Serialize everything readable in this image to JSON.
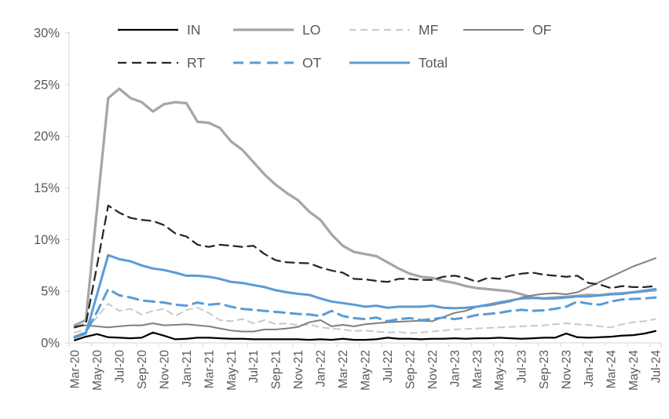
{
  "chart_data": {
    "type": "line",
    "title": "",
    "xlabel": "",
    "ylabel": "",
    "ylim": [
      0,
      30
    ],
    "y_tick_labels": [
      "0%",
      "5%",
      "10%",
      "15%",
      "20%",
      "25%",
      "30%"
    ],
    "grid": false,
    "legend_position": "top",
    "legend_rows": [
      [
        "IN",
        "LO",
        "MF",
        "OF"
      ],
      [
        "RT",
        "OT",
        "Total"
      ]
    ],
    "axis_color": "#d6d6d6",
    "text_color": "#595959",
    "x_tick_labels": [
      "Mar-20",
      "May-20",
      "Jul-20",
      "Sep-20",
      "Nov-20",
      "Jan-21",
      "Mar-21",
      "May-21",
      "Jul-21",
      "Sep-21",
      "Nov-21",
      "Jan-22",
      "Mar-22",
      "May-22",
      "Jul-22",
      "Sep-22",
      "Nov-22",
      "Jan-23",
      "Mar-23",
      "May-23",
      "Jul-23",
      "Sep-23",
      "Nov-23",
      "Jan-24",
      "Mar-24",
      "May-24",
      "Jul-24"
    ],
    "x": [
      "Mar-20",
      "Apr-20",
      "May-20",
      "Jun-20",
      "Jul-20",
      "Aug-20",
      "Sep-20",
      "Oct-20",
      "Nov-20",
      "Dec-20",
      "Jan-21",
      "Feb-21",
      "Mar-21",
      "Apr-21",
      "May-21",
      "Jun-21",
      "Jul-21",
      "Aug-21",
      "Sep-21",
      "Oct-21",
      "Nov-21",
      "Dec-21",
      "Jan-22",
      "Feb-22",
      "Mar-22",
      "Apr-22",
      "May-22",
      "Jun-22",
      "Jul-22",
      "Aug-22",
      "Sep-22",
      "Oct-22",
      "Nov-22",
      "Dec-22",
      "Jan-23",
      "Feb-23",
      "Mar-23",
      "Apr-23",
      "May-23",
      "Jun-23",
      "Jul-23",
      "Aug-23",
      "Sep-23",
      "Oct-23",
      "Nov-23",
      "Dec-23",
      "Jan-24",
      "Feb-24",
      "Mar-24",
      "Apr-24",
      "May-24",
      "Jun-24",
      "Jul-24"
    ],
    "series": [
      {
        "name": "IN",
        "color": "#000000",
        "dash": "",
        "width": 2.25,
        "values": [
          0.25,
          0.6,
          0.85,
          0.55,
          0.5,
          0.45,
          0.5,
          1.0,
          0.7,
          0.35,
          0.4,
          0.5,
          0.5,
          0.45,
          0.4,
          0.4,
          0.35,
          0.35,
          0.35,
          0.35,
          0.35,
          0.3,
          0.35,
          0.3,
          0.4,
          0.3,
          0.3,
          0.35,
          0.5,
          0.4,
          0.4,
          0.35,
          0.4,
          0.4,
          0.45,
          0.4,
          0.45,
          0.45,
          0.5,
          0.45,
          0.4,
          0.45,
          0.5,
          0.5,
          0.9,
          0.55,
          0.5,
          0.55,
          0.6,
          0.7,
          0.75,
          0.9,
          1.15
        ]
      },
      {
        "name": "LO",
        "color": "#a6a6a6",
        "dash": "",
        "width": 3.25,
        "values": [
          1.7,
          2.2,
          13.0,
          23.7,
          24.6,
          23.7,
          23.3,
          22.4,
          23.1,
          23.3,
          23.2,
          21.4,
          21.3,
          20.8,
          19.5,
          18.7,
          17.5,
          16.3,
          15.3,
          14.5,
          13.8,
          12.7,
          11.9,
          10.5,
          9.4,
          8.8,
          8.6,
          8.4,
          7.8,
          7.2,
          6.7,
          6.4,
          6.3,
          6.0,
          5.8,
          5.5,
          5.3,
          5.2,
          5.1,
          5.0,
          4.7,
          4.4,
          4.3,
          4.4,
          4.45,
          4.55,
          4.65,
          4.6,
          4.75,
          4.8,
          4.9,
          5.0,
          5.1
        ]
      },
      {
        "name": "MF",
        "color": "#c9c9c9",
        "dash": "8 6",
        "width": 2,
        "values": [
          1.0,
          1.3,
          2.5,
          3.8,
          3.1,
          3.3,
          2.75,
          3.1,
          3.3,
          2.6,
          3.2,
          3.4,
          2.9,
          2.2,
          2.1,
          2.3,
          1.9,
          2.2,
          1.8,
          1.9,
          1.7,
          1.8,
          1.5,
          1.4,
          1.3,
          1.15,
          1.2,
          1.1,
          1.0,
          1.05,
          0.95,
          1.0,
          1.1,
          1.2,
          1.3,
          1.35,
          1.4,
          1.45,
          1.5,
          1.55,
          1.6,
          1.65,
          1.7,
          1.8,
          1.9,
          1.8,
          1.75,
          1.6,
          1.5,
          1.8,
          2.0,
          2.1,
          2.3
        ]
      },
      {
        "name": "OF",
        "color": "#7f7f7f",
        "dash": "",
        "width": 2,
        "values": [
          1.6,
          1.7,
          1.6,
          1.5,
          1.6,
          1.7,
          1.7,
          1.9,
          1.7,
          1.75,
          1.8,
          1.7,
          1.6,
          1.4,
          1.2,
          1.1,
          1.1,
          1.3,
          1.3,
          1.4,
          1.55,
          2.0,
          2.2,
          1.6,
          1.75,
          1.6,
          1.8,
          1.9,
          2.0,
          2.05,
          2.1,
          2.15,
          2.1,
          2.5,
          2.9,
          3.1,
          3.5,
          3.6,
          3.8,
          4.0,
          4.4,
          4.6,
          4.75,
          4.8,
          4.7,
          4.9,
          5.4,
          5.9,
          6.4,
          6.9,
          7.4,
          7.8,
          8.2
        ]
      },
      {
        "name": "RT",
        "color": "#262626",
        "dash": "11 7",
        "width": 2.25,
        "values": [
          1.5,
          1.8,
          7.5,
          13.3,
          12.6,
          12.1,
          11.9,
          11.8,
          11.4,
          10.6,
          10.3,
          9.5,
          9.3,
          9.5,
          9.4,
          9.3,
          9.4,
          8.6,
          8.0,
          7.8,
          7.75,
          7.7,
          7.3,
          7.0,
          6.8,
          6.2,
          6.15,
          6.0,
          5.9,
          6.2,
          6.2,
          6.1,
          6.1,
          6.4,
          6.5,
          6.3,
          5.9,
          6.3,
          6.2,
          6.5,
          6.7,
          6.8,
          6.6,
          6.5,
          6.4,
          6.5,
          5.8,
          5.65,
          5.3,
          5.5,
          5.4,
          5.4,
          5.5
        ]
      },
      {
        "name": "OT",
        "color": "#5b9bd5",
        "dash": "13 8",
        "width": 3,
        "values": [
          0.6,
          1.0,
          3.0,
          5.2,
          4.6,
          4.4,
          4.1,
          4.0,
          3.9,
          3.7,
          3.6,
          3.9,
          3.7,
          3.8,
          3.5,
          3.3,
          3.2,
          3.1,
          3.0,
          2.9,
          2.8,
          2.75,
          2.6,
          3.1,
          2.6,
          2.4,
          2.3,
          2.45,
          2.1,
          2.3,
          2.4,
          2.2,
          2.3,
          2.45,
          2.3,
          2.45,
          2.7,
          2.8,
          2.9,
          3.1,
          3.2,
          3.1,
          3.15,
          3.3,
          3.5,
          4.0,
          3.8,
          3.7,
          4.0,
          4.2,
          4.25,
          4.3,
          4.4
        ]
      },
      {
        "name": "Total",
        "color": "#5b9bd5",
        "dash": "",
        "width": 3,
        "values": [
          0.5,
          0.9,
          4.7,
          8.5,
          8.1,
          7.9,
          7.5,
          7.2,
          7.05,
          6.8,
          6.5,
          6.5,
          6.4,
          6.2,
          5.9,
          5.8,
          5.6,
          5.4,
          5.1,
          4.9,
          4.75,
          4.65,
          4.3,
          4.0,
          3.85,
          3.7,
          3.5,
          3.6,
          3.4,
          3.5,
          3.5,
          3.5,
          3.6,
          3.4,
          3.35,
          3.4,
          3.5,
          3.7,
          3.9,
          4.1,
          4.3,
          4.35,
          4.3,
          4.3,
          4.4,
          4.5,
          4.5,
          4.6,
          4.7,
          4.75,
          4.9,
          5.05,
          5.2
        ]
      }
    ]
  }
}
